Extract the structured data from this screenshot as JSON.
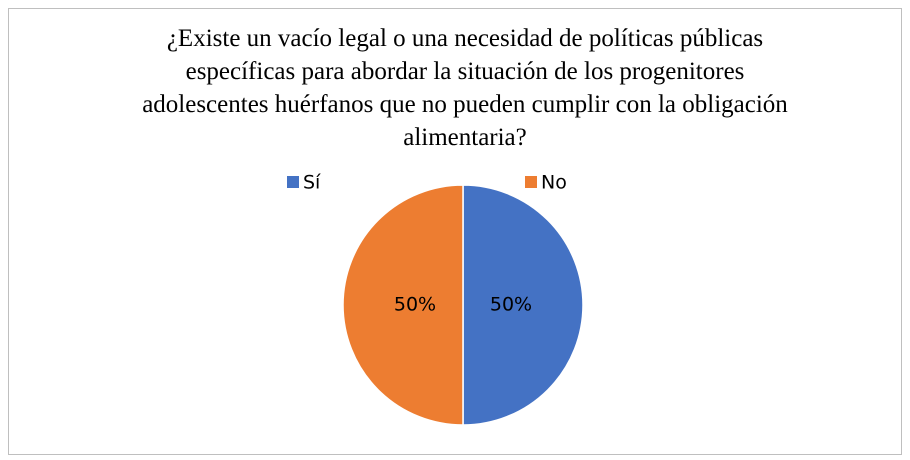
{
  "chart_data": {
    "type": "pie",
    "title": "¿Existe un vacío legal o una necesidad de políticas públicas específicas para abordar la situación de los progenitores adolescentes huérfanos que no pueden cumplir con la obligación alimentaria?",
    "categories": [
      "Sí",
      "No"
    ],
    "values": [
      50,
      50
    ],
    "value_labels": [
      "50%",
      "50%"
    ],
    "colors": [
      "#4472c4",
      "#ed7d31"
    ],
    "legend": "top"
  }
}
